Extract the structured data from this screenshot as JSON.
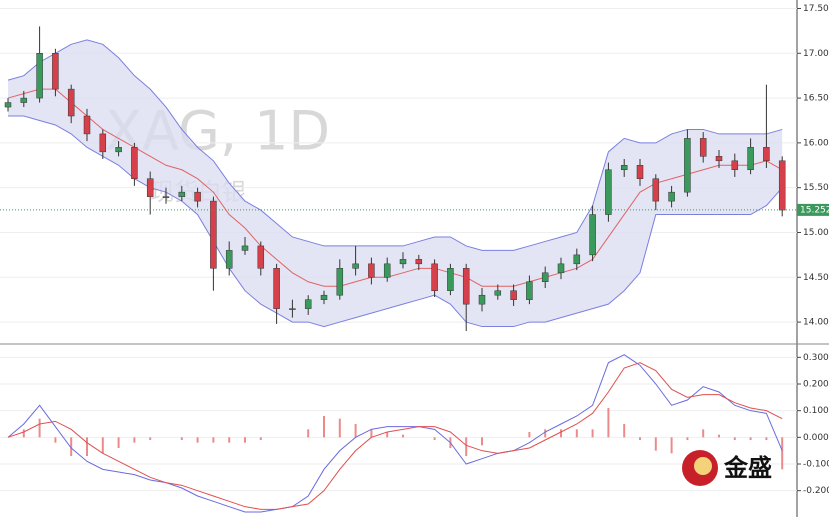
{
  "watermark": {
    "symbol": "XAG, 1D",
    "name": "现货白银"
  },
  "logo": "金盛",
  "chart_data": [
    {
      "type": "candlestick",
      "up_color": "#3a9a5c",
      "down_color": "#d6404a",
      "open": [
        16.4,
        16.45,
        16.5,
        17.0,
        16.6,
        16.3,
        16.1,
        15.9,
        15.95,
        15.6,
        15.4,
        15.4,
        15.45,
        15.35,
        14.6,
        14.8,
        14.85,
        14.6,
        14.15,
        14.15,
        14.25,
        14.3,
        14.6,
        14.65,
        14.5,
        14.65,
        14.7,
        14.65,
        14.35,
        14.6,
        14.2,
        14.3,
        14.35,
        14.25,
        14.45,
        14.55,
        14.65,
        14.75,
        15.2,
        15.7,
        15.75,
        15.6,
        15.35,
        15.45,
        16.05,
        15.85,
        15.8,
        15.7,
        15.95,
        15.8
      ],
      "high": [
        16.5,
        16.58,
        17.3,
        17.05,
        16.65,
        16.38,
        16.15,
        16.02,
        16.0,
        15.68,
        15.5,
        15.52,
        15.5,
        15.4,
        14.9,
        14.95,
        14.9,
        14.65,
        14.25,
        14.3,
        14.35,
        14.7,
        14.85,
        14.72,
        14.72,
        14.78,
        14.75,
        14.7,
        14.65,
        14.65,
        14.38,
        14.42,
        14.42,
        14.52,
        14.62,
        14.72,
        14.82,
        15.3,
        15.78,
        15.82,
        15.82,
        15.65,
        15.52,
        16.15,
        16.12,
        15.92,
        15.88,
        16.05,
        16.65,
        15.85
      ],
      "low": [
        16.35,
        16.4,
        16.45,
        16.52,
        16.22,
        16.02,
        15.82,
        15.85,
        15.52,
        15.2,
        15.32,
        15.35,
        15.28,
        14.35,
        14.52,
        14.75,
        14.52,
        13.98,
        14.05,
        14.08,
        14.2,
        14.25,
        14.52,
        14.42,
        14.45,
        14.6,
        14.58,
        14.28,
        14.3,
        13.9,
        14.12,
        14.25,
        14.18,
        14.2,
        14.38,
        14.48,
        14.58,
        14.68,
        15.12,
        15.62,
        15.52,
        15.25,
        15.28,
        15.4,
        15.78,
        15.72,
        15.62,
        15.65,
        15.72,
        15.18
      ],
      "close": [
        16.45,
        16.5,
        17.0,
        16.6,
        16.3,
        16.1,
        15.9,
        15.95,
        15.6,
        15.4,
        15.4,
        15.45,
        15.35,
        14.6,
        14.8,
        14.85,
        14.6,
        14.15,
        14.15,
        14.25,
        14.3,
        14.6,
        14.65,
        14.5,
        14.65,
        14.7,
        14.65,
        14.35,
        14.6,
        14.2,
        14.3,
        14.35,
        14.25,
        14.45,
        14.55,
        14.65,
        14.75,
        15.2,
        15.7,
        15.75,
        15.6,
        15.35,
        15.45,
        16.05,
        15.85,
        15.8,
        15.7,
        15.95,
        15.8,
        15.25
      ],
      "series": [
        {
          "color": "#7b7fe0",
          "values": [
            16.7,
            16.75,
            16.9,
            17.0,
            17.1,
            17.15,
            17.1,
            16.95,
            16.75,
            16.6,
            16.4,
            16.15,
            15.95,
            15.8,
            15.55,
            15.35,
            15.25,
            15.1,
            14.95,
            14.9,
            14.85,
            14.85,
            14.85,
            14.85,
            14.85,
            14.85,
            14.9,
            14.95,
            14.95,
            14.85,
            14.8,
            14.8,
            14.8,
            14.85,
            14.9,
            14.95,
            15.0,
            15.3,
            15.9,
            16.05,
            16.0,
            16.0,
            16.1,
            16.15,
            16.15,
            16.1,
            16.1,
            16.1,
            16.1,
            16.15
          ]
        },
        {
          "color": "#e06464",
          "values": [
            16.5,
            16.55,
            16.6,
            16.6,
            16.45,
            16.3,
            16.15,
            16.05,
            15.95,
            15.85,
            15.75,
            15.7,
            15.6,
            15.45,
            15.2,
            15.05,
            14.85,
            14.7,
            14.55,
            14.45,
            14.4,
            14.4,
            14.45,
            14.5,
            14.5,
            14.55,
            14.6,
            14.6,
            14.55,
            14.5,
            14.4,
            14.4,
            14.4,
            14.45,
            14.5,
            14.55,
            14.6,
            14.7,
            14.95,
            15.2,
            15.45,
            15.55,
            15.6,
            15.65,
            15.7,
            15.75,
            15.75,
            15.75,
            15.8,
            15.7
          ]
        },
        {
          "color": "#7b7fe0",
          "values": [
            16.3,
            16.3,
            16.25,
            16.2,
            16.1,
            15.95,
            15.85,
            15.75,
            15.6,
            15.5,
            15.45,
            15.35,
            15.2,
            14.9,
            14.6,
            14.35,
            14.2,
            14.1,
            14.0,
            14.0,
            13.95,
            14.0,
            14.05,
            14.1,
            14.15,
            14.2,
            14.25,
            14.3,
            14.2,
            14.0,
            13.95,
            13.95,
            13.95,
            14.0,
            14.0,
            14.05,
            14.1,
            14.15,
            14.2,
            14.35,
            14.55,
            15.2,
            15.2,
            15.2,
            15.2,
            15.2,
            15.2,
            15.2,
            15.3,
            15.5
          ]
        }
      ],
      "band_fill": "#dadcf2",
      "last_price": 15.252,
      "last_color": "#3a9a5c",
      "ylim": [
        13.8,
        17.55
      ],
      "yticks": [
        {
          "value": 17.5,
          "label": "17.500"
        },
        {
          "value": 17.0,
          "label": "17.000"
        },
        {
          "value": 16.5,
          "label": "16.500"
        },
        {
          "value": 16.0,
          "label": "16.000"
        },
        {
          "value": 15.5,
          "label": "15.500"
        },
        {
          "value": 15.0,
          "label": "15.000"
        },
        {
          "value": 14.5,
          "label": "14.500"
        },
        {
          "value": 14.0,
          "label": "14.000"
        }
      ],
      "grid": true
    },
    {
      "type": "macd",
      "series": [
        {
          "color": "#6a6ae0",
          "values": [
            0.0,
            0.05,
            0.12,
            0.04,
            -0.04,
            -0.09,
            -0.12,
            -0.13,
            -0.14,
            -0.16,
            -0.17,
            -0.19,
            -0.22,
            -0.24,
            -0.26,
            -0.28,
            -0.28,
            -0.27,
            -0.26,
            -0.22,
            -0.12,
            -0.05,
            0.0,
            0.03,
            0.04,
            0.04,
            0.04,
            0.03,
            -0.02,
            -0.1,
            -0.08,
            -0.06,
            -0.05,
            -0.02,
            0.02,
            0.05,
            0.08,
            0.12,
            0.28,
            0.31,
            0.27,
            0.2,
            0.12,
            0.14,
            0.19,
            0.17,
            0.12,
            0.1,
            0.09,
            -0.05
          ]
        },
        {
          "color": "#e05050",
          "values": [
            0.0,
            0.02,
            0.05,
            0.06,
            0.03,
            -0.02,
            -0.06,
            -0.09,
            -0.12,
            -0.15,
            -0.17,
            -0.18,
            -0.2,
            -0.22,
            -0.24,
            -0.26,
            -0.27,
            -0.27,
            -0.26,
            -0.25,
            -0.2,
            -0.12,
            -0.05,
            0.0,
            0.02,
            0.03,
            0.04,
            0.04,
            0.02,
            -0.03,
            -0.05,
            -0.06,
            -0.05,
            -0.04,
            -0.01,
            0.02,
            0.05,
            0.09,
            0.17,
            0.26,
            0.28,
            0.25,
            0.18,
            0.15,
            0.16,
            0.16,
            0.13,
            0.11,
            0.1,
            0.07
          ]
        }
      ],
      "histogram": {
        "color": "#ec8a8a",
        "values": [
          0,
          0.03,
          0.07,
          -0.02,
          -0.07,
          -0.07,
          -0.06,
          -0.04,
          -0.02,
          -0.01,
          0,
          -0.01,
          -0.02,
          -0.02,
          -0.02,
          -0.02,
          -0.01,
          0,
          0,
          0.03,
          0.08,
          0.07,
          0.05,
          0.03,
          0.02,
          0.01,
          0,
          -0.01,
          -0.04,
          -0.07,
          -0.03,
          0,
          0,
          0.02,
          0.03,
          0.03,
          0.03,
          0.03,
          0.11,
          0.05,
          -0.01,
          -0.05,
          -0.06,
          -0.01,
          0.03,
          0.01,
          -0.01,
          -0.01,
          -0.01,
          -0.12
        ]
      },
      "ylim": [
        -0.28,
        0.32
      ],
      "yticks": [
        {
          "value": 0.3,
          "label": "0.3000"
        },
        {
          "value": 0.2,
          "label": "0.2000"
        },
        {
          "value": 0.1,
          "label": "0.1000"
        },
        {
          "value": 0,
          "label": "0.0000"
        },
        {
          "value": -0.1,
          "label": "-0.1000"
        },
        {
          "value": -0.2,
          "label": "-0.2000"
        }
      ],
      "grid": true
    }
  ]
}
